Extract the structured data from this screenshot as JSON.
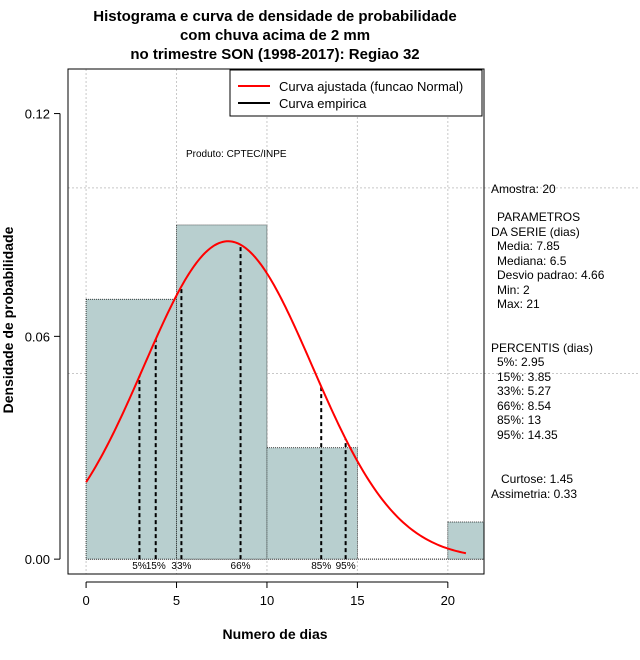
{
  "chart_data": {
    "type": "histogram",
    "title": [
      "Histograma e curva de densidade de probabilidade",
      "com chuva acima de 2 mm",
      "no trimestre SON (1998-2017): Regiao 32"
    ],
    "xlabel": "Numero de dias",
    "ylabel": "Densidade de probabilidade",
    "xlim": [
      -1,
      22
    ],
    "ylim": [
      -0.004,
      0.132
    ],
    "x_ticks": [
      0,
      5,
      10,
      15,
      20
    ],
    "y_ticks": [
      0.0,
      0.06,
      0.12
    ],
    "y_tick_labels": [
      "0.00",
      "0.06",
      "0.12"
    ],
    "bins": [
      {
        "x0": 0,
        "x1": 5,
        "density": 0.07
      },
      {
        "x0": 5,
        "x1": 10,
        "density": 0.09
      },
      {
        "x0": 10,
        "x1": 15,
        "density": 0.03
      },
      {
        "x0": 15,
        "x1": 20,
        "density": 0.0
      },
      {
        "x0": 20,
        "x1": 22,
        "density": 0.01
      }
    ],
    "normal_fit": {
      "mean": 7.85,
      "sd": 4.66,
      "x_from": 0,
      "x_to": 21,
      "color": "#ff0000"
    },
    "percentiles": [
      {
        "label": "5%",
        "x": 2.95
      },
      {
        "label": "15%",
        "x": 3.85
      },
      {
        "label": "33%",
        "x": 5.27
      },
      {
        "label": "66%",
        "x": 8.54
      },
      {
        "label": "85%",
        "x": 13
      },
      {
        "label": "95%",
        "x": 14.35
      }
    ],
    "grid": true,
    "legend_position": "top-right",
    "legend": [
      {
        "label": "Curva ajustada (funcao Normal)",
        "color": "#ff0000"
      },
      {
        "label": "Curva empirica",
        "color": "#000000"
      }
    ],
    "annotation": "Produto: CPTEC/INPE",
    "bar_color": "#b8cfcf"
  },
  "stats_panel": {
    "amostra": "Amostra: 20",
    "parametros_title_1": "PARAMETROS",
    "parametros_title_2": "DA SERIE (dias)",
    "media": "Media: 7.85",
    "mediana": "Mediana: 6.5",
    "desvio": "Desvio padrao: 4.66",
    "min": "Min: 2",
    "max": "Max: 21",
    "percentis_title": "PERCENTIS (dias)",
    "p5": "5%: 2.95",
    "p15": "15%: 3.85",
    "p33": "33%: 5.27",
    "p66": "66%: 8.54",
    "p85": "85%: 13",
    "p95": "95%: 14.35",
    "curtose": "Curtose: 1.45",
    "assimetria": "Assimetria: 0.33"
  }
}
